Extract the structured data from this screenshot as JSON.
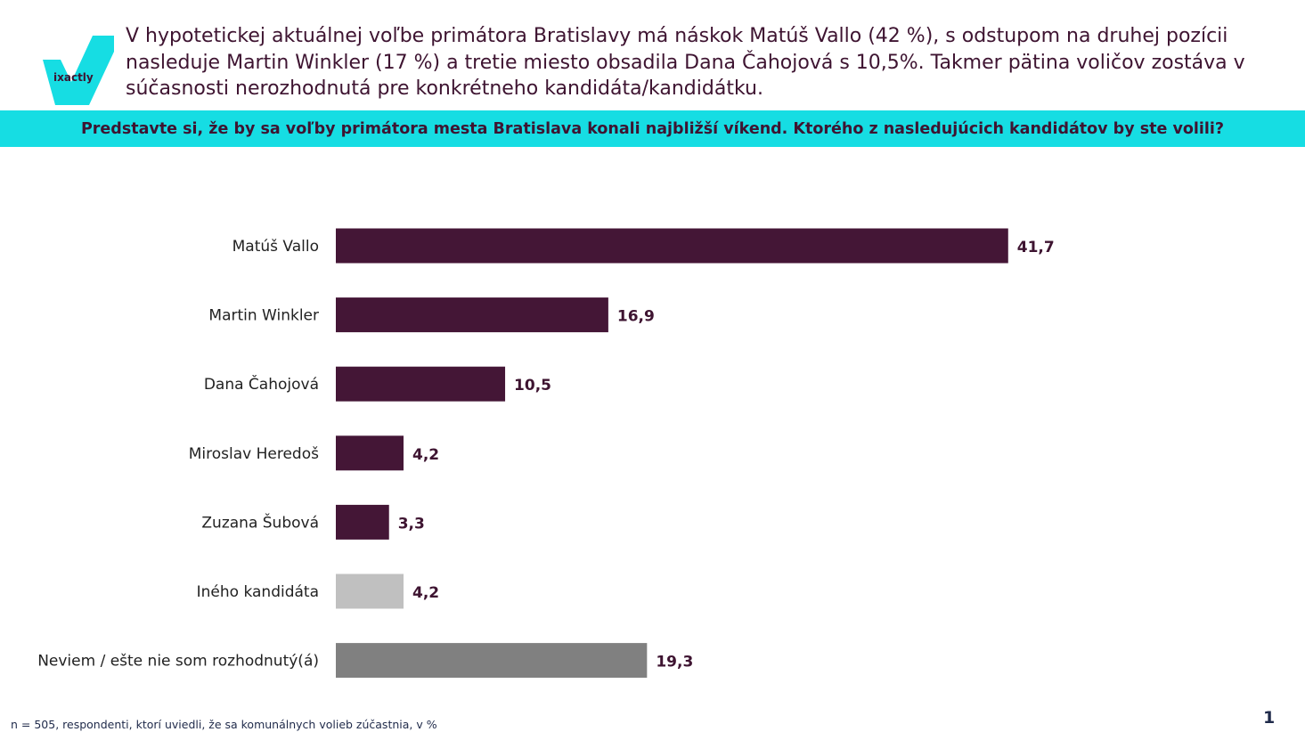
{
  "logo": {
    "text": "ixactly"
  },
  "headline": "V hypotetickej aktuálnej voľbe primátora Bratislavy má náskok Matúš Vallo (42 %), s odstupom na druhej pozícii nasleduje Martin Winkler (17 %) a tretie miesto obsadila Dana Čahojová s 10,5%. Takmer pätina voličov zostáva v súčasnosti nerozhodnutá pre konkrétneho kandidáta/kandidátku.",
  "question": "Predstavte si, že by sa voľby primátora mesta Bratislava konali najbližší víkend. Ktorého z nasledujúcich kandidátov by ste volili?",
  "footnote": "n = 505, respondenti, ktorí uviedli, že sa komunálnych volieb zúčastnia, v %",
  "page_number": "1",
  "colors": {
    "accent": "#16dde3",
    "candidate_bar": "#441636",
    "other_bar": "#c0c0c0",
    "undecided_bar": "#808080",
    "text": "#3e1431"
  },
  "chart_data": {
    "type": "bar",
    "orientation": "horizontal",
    "title": "",
    "xlabel": "",
    "ylabel": "",
    "grid": false,
    "xlim": [
      0,
      50
    ],
    "categories": [
      "Matúš Vallo",
      "Martin Winkler",
      "Dana Čahojová",
      "Miroslav Heredoš",
      "Zuzana Šubová",
      "Iného kandidáta",
      "Neviem / ešte nie som rozhodnutý(á)"
    ],
    "values": [
      41.7,
      16.9,
      10.5,
      4.2,
      3.3,
      4.2,
      19.3
    ],
    "value_labels": [
      "41,7",
      "16,9",
      "10,5",
      "4,2",
      "3,3",
      "4,2",
      "19,3"
    ],
    "bar_colors": [
      "#441636",
      "#441636",
      "#441636",
      "#441636",
      "#441636",
      "#c0c0c0",
      "#808080"
    ]
  }
}
